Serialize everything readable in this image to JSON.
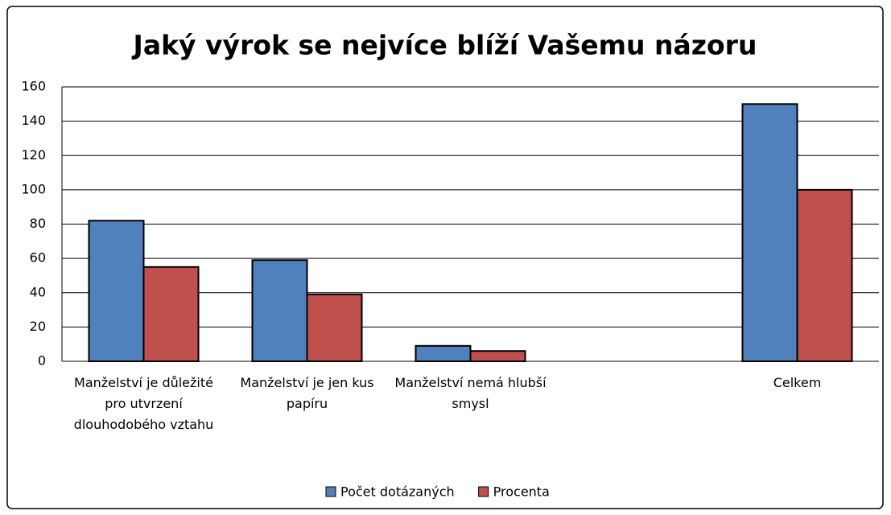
{
  "chart_data": {
    "type": "bar",
    "title": "Jaký výrok se nejvíce blíží Vašemu názoru",
    "categories": [
      "Manželství je důležité pro utvrzení dlouhodobého vztahu",
      "Manželství je jen kus papíru",
      "Manželství nemá hlubší smysl",
      null,
      "Celkem"
    ],
    "series": [
      {
        "name": "Počet dotázaných",
        "color": "#4f81bd",
        "values": [
          82,
          59,
          9,
          null,
          150
        ]
      },
      {
        "name": "Procenta",
        "color": "#c0504d",
        "values": [
          55,
          39,
          6,
          null,
          100
        ]
      }
    ],
    "ylim": [
      0,
      160
    ],
    "yticks": [
      0,
      20,
      40,
      60,
      80,
      100,
      120,
      140,
      160
    ],
    "grid": true,
    "legend": "bottom"
  }
}
